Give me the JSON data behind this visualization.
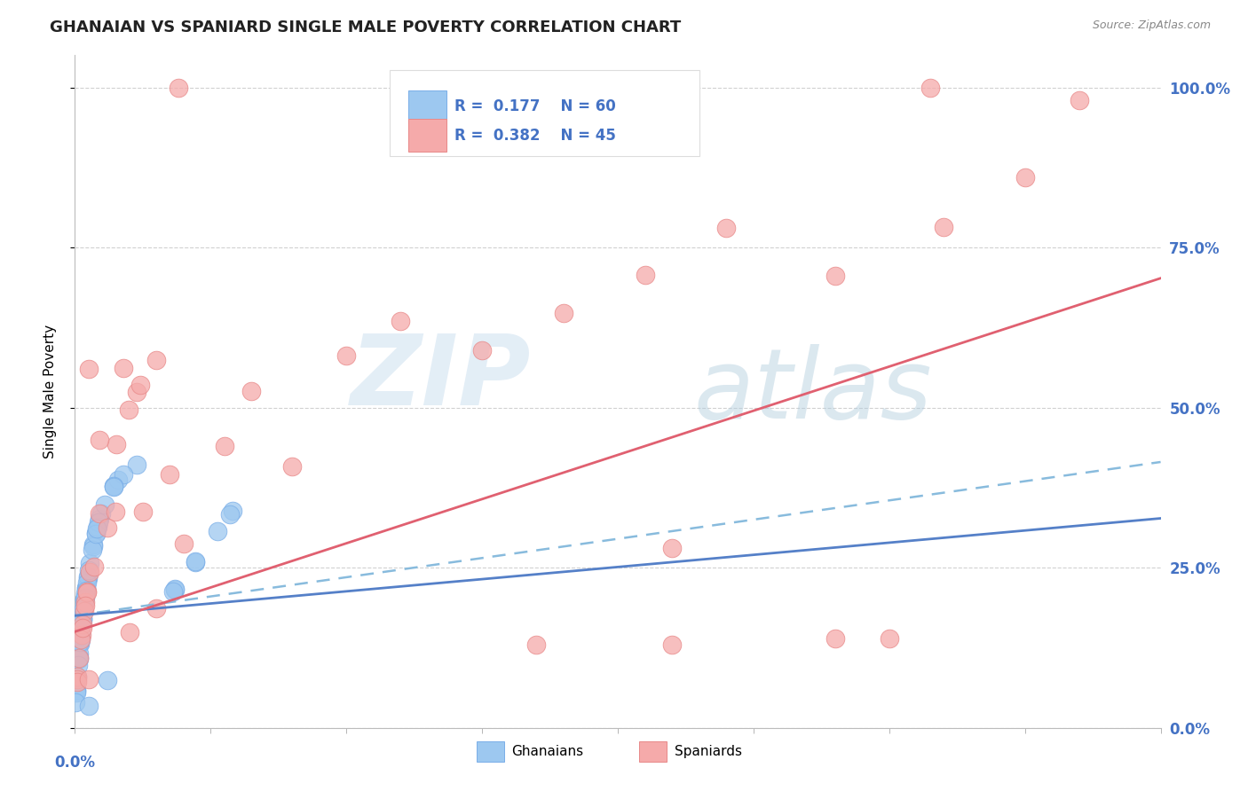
{
  "title": "GHANAIAN VS SPANIARD SINGLE MALE POVERTY CORRELATION CHART",
  "source": "Source: ZipAtlas.com",
  "ylabel": "Single Male Poverty",
  "ytick_labels": [
    "0.0%",
    "25.0%",
    "50.0%",
    "75.0%",
    "100.0%"
  ],
  "ytick_values": [
    0.0,
    0.25,
    0.5,
    0.75,
    1.0
  ],
  "xlim": [
    0.0,
    0.4
  ],
  "ylim": [
    0.0,
    1.05
  ],
  "ghanaian_color": "#9DC8F0",
  "spaniard_color": "#F5AAAA",
  "ghanaian_edge": "#7aaee8",
  "spaniard_edge": "#e88888",
  "trend_ghana_color": "#5580C8",
  "trend_spain_color": "#E06070",
  "dashed_color": "#88BBDD",
  "legend_R_ghana": "0.177",
  "legend_N_ghana": "60",
  "legend_R_spain": "0.382",
  "legend_N_spain": "45",
  "legend_text_color": "#4472C4",
  "background_color": "#FFFFFF",
  "grid_color": "#CCCCCC",
  "ghana_solid_slope": 0.38,
  "ghana_solid_intercept": 0.175,
  "spain_solid_slope": 1.38,
  "spain_solid_intercept": 0.15,
  "dashed_slope": 0.6,
  "dashed_intercept": 0.175
}
